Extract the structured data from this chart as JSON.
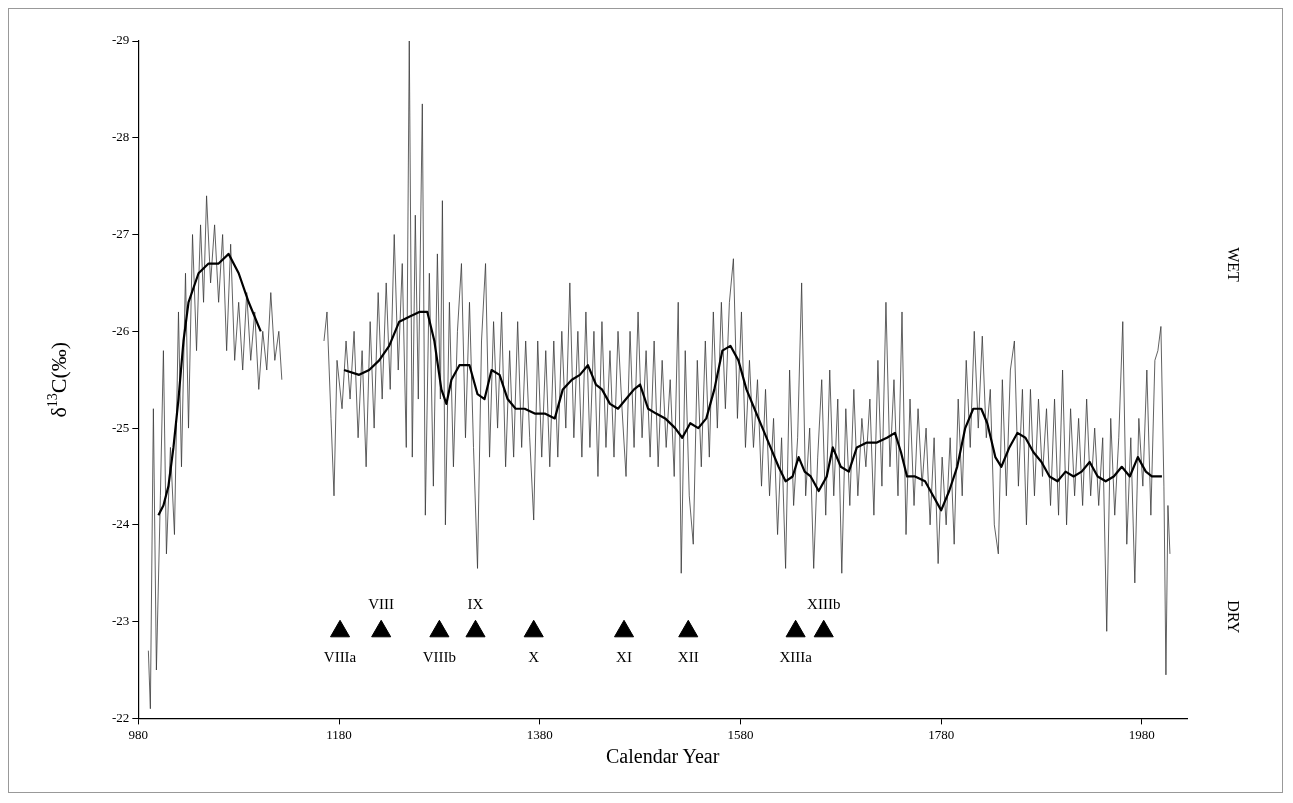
{
  "chart_data": {
    "type": "line",
    "xlabel": "Calendar Year",
    "ylabel": "δ$^{13}$C(‰)",
    "xlim": [
      980,
      2025
    ],
    "xticks": [
      980,
      1180,
      1380,
      1580,
      1780,
      1980
    ],
    "ylim": [
      -22,
      -29
    ],
    "yticks": [
      -22,
      -23,
      -24,
      -25,
      -26,
      -27,
      -28,
      -29
    ],
    "grid": false,
    "legend": false,
    "series": [
      {
        "color": "#3a3a3a",
        "x": [
          990,
          992,
          995,
          998,
          1002,
          1005,
          1008,
          1012,
          1016,
          1020,
          1023,
          1027,
          1030,
          1034,
          1038,
          1042,
          1045,
          1048,
          1052,
          1056,
          1060,
          1064,
          1068,
          1072,
          1076,
          1080,
          1084,
          1088,
          1092,
          1096,
          1100,
          1104,
          1108,
          1112,
          1116,
          1120,
          1123,
          1145,
          1165,
          1168,
          1172,
          1175,
          1178,
          1183,
          1187,
          1191,
          1195,
          1199,
          1203,
          1207,
          1211,
          1215,
          1219,
          1223,
          1227,
          1231,
          1235,
          1239,
          1243,
          1247,
          1250,
          1253,
          1256,
          1259,
          1263,
          1266,
          1270,
          1274,
          1278,
          1281,
          1283,
          1286,
          1290,
          1294,
          1298,
          1302,
          1306,
          1310,
          1314,
          1318,
          1322,
          1326,
          1330,
          1334,
          1338,
          1342,
          1346,
          1350,
          1354,
          1358,
          1362,
          1366,
          1370,
          1374,
          1378,
          1382,
          1386,
          1390,
          1394,
          1398,
          1402,
          1406,
          1410,
          1414,
          1418,
          1422,
          1426,
          1430,
          1434,
          1438,
          1442,
          1446,
          1450,
          1454,
          1458,
          1462,
          1466,
          1470,
          1474,
          1478,
          1482,
          1486,
          1490,
          1494,
          1498,
          1502,
          1506,
          1510,
          1514,
          1518,
          1521,
          1525,
          1529,
          1533,
          1537,
          1541,
          1545,
          1549,
          1553,
          1557,
          1561,
          1565,
          1569,
          1573,
          1577,
          1581,
          1585,
          1589,
          1593,
          1597,
          1601,
          1605,
          1609,
          1613,
          1617,
          1621,
          1625,
          1629,
          1633,
          1637,
          1641,
          1645,
          1649,
          1653,
          1657,
          1661,
          1665,
          1669,
          1673,
          1677,
          1681,
          1685,
          1689,
          1693,
          1697,
          1701,
          1705,
          1709,
          1713,
          1717,
          1721,
          1725,
          1729,
          1733,
          1737,
          1741,
          1745,
          1749,
          1753,
          1757,
          1761,
          1765,
          1769,
          1773,
          1777,
          1781,
          1785,
          1789,
          1793,
          1797,
          1801,
          1805,
          1809,
          1813,
          1817,
          1821,
          1825,
          1829,
          1833,
          1837,
          1841,
          1845,
          1849,
          1853,
          1857,
          1861,
          1865,
          1869,
          1873,
          1877,
          1881,
          1885,
          1889,
          1893,
          1897,
          1901,
          1905,
          1909,
          1913,
          1917,
          1921,
          1925,
          1929,
          1933,
          1937,
          1941,
          1945,
          1949,
          1953,
          1957,
          1961,
          1965,
          1969,
          1973,
          1977,
          1981,
          1985,
          1989,
          1993,
          1996,
          1999,
          2002,
          2004,
          2006,
          2008
        ],
        "values": [
          -22.7,
          -22.1,
          -25.2,
          -22.5,
          -24.3,
          -25.8,
          -23.7,
          -24.8,
          -23.9,
          -26.2,
          -24.6,
          -26.6,
          -25.0,
          -27.0,
          -25.8,
          -27.1,
          -26.3,
          -27.4,
          -26.5,
          -27.1,
          -26.3,
          -27.0,
          -25.8,
          -26.9,
          -25.7,
          -26.3,
          -25.6,
          -26.4,
          -25.7,
          -26.2,
          -25.4,
          -26.0,
          -25.6,
          -26.4,
          -25.7,
          -26.0,
          -25.5,
          null,
          -25.9,
          -26.2,
          -25.1,
          -24.3,
          -25.7,
          -25.2,
          -25.9,
          -25.3,
          -26.0,
          -24.9,
          -25.8,
          -24.6,
          -26.1,
          -25.0,
          -26.4,
          -25.3,
          -26.5,
          -25.4,
          -27.0,
          -25.6,
          -26.7,
          -24.8,
          -29.0,
          -24.7,
          -27.2,
          -25.3,
          -28.35,
          -24.1,
          -26.6,
          -24.4,
          -26.8,
          -25.3,
          -27.35,
          -24.0,
          -26.3,
          -24.6,
          -26.0,
          -26.7,
          -24.9,
          -26.3,
          -24.8,
          -23.55,
          -25.9,
          -26.7,
          -24.7,
          -26.1,
          -25.0,
          -26.2,
          -24.6,
          -25.8,
          -24.7,
          -26.1,
          -24.8,
          -25.9,
          -24.9,
          -24.05,
          -25.9,
          -24.7,
          -25.8,
          -24.6,
          -25.9,
          -24.7,
          -26.0,
          -25.0,
          -26.5,
          -24.9,
          -26.0,
          -24.7,
          -26.2,
          -24.8,
          -26.0,
          -24.5,
          -26.1,
          -24.8,
          -25.8,
          -24.7,
          -26.0,
          -25.2,
          -24.5,
          -26.0,
          -24.8,
          -26.2,
          -24.9,
          -25.8,
          -24.7,
          -25.9,
          -24.6,
          -25.7,
          -24.8,
          -25.5,
          -24.5,
          -26.3,
          -23.5,
          -25.8,
          -24.3,
          -23.8,
          -25.7,
          -24.6,
          -25.9,
          -24.7,
          -26.2,
          -25.0,
          -26.3,
          -25.2,
          -26.3,
          -26.75,
          -25.1,
          -26.2,
          -24.8,
          -25.7,
          -24.8,
          -25.5,
          -24.4,
          -25.4,
          -24.3,
          -25.1,
          -23.9,
          -24.9,
          -23.55,
          -25.6,
          -24.2,
          -24.9,
          -26.5,
          -24.3,
          -25.0,
          -23.55,
          -24.7,
          -25.5,
          -24.1,
          -25.6,
          -24.3,
          -25.3,
          -23.5,
          -25.2,
          -24.2,
          -25.4,
          -24.3,
          -25.1,
          -24.6,
          -25.3,
          -24.1,
          -25.7,
          -24.4,
          -26.3,
          -24.6,
          -25.5,
          -24.3,
          -26.2,
          -23.9,
          -25.3,
          -24.2,
          -25.2,
          -24.4,
          -25.0,
          -24.0,
          -24.9,
          -23.6,
          -24.7,
          -24.0,
          -24.9,
          -23.8,
          -25.3,
          -24.3,
          -25.7,
          -24.8,
          -26.0,
          -25.0,
          -25.95,
          -24.9,
          -25.4,
          -24.0,
          -23.7,
          -25.5,
          -24.3,
          -25.6,
          -25.9,
          -24.4,
          -25.4,
          -24.0,
          -25.4,
          -24.3,
          -25.3,
          -24.5,
          -25.2,
          -24.2,
          -25.3,
          -24.1,
          -25.6,
          -24.0,
          -25.2,
          -24.3,
          -25.1,
          -24.2,
          -25.3,
          -24.3,
          -25.0,
          -24.2,
          -24.9,
          -22.9,
          -25.1,
          -24.1,
          -24.9,
          -26.1,
          -23.8,
          -24.9,
          -23.4,
          -25.1,
          -24.4,
          -25.6,
          -24.1,
          -25.7,
          -25.8,
          -26.05,
          -24.4,
          -22.45,
          -24.2,
          -23.7
        ]
      },
      {
        "color": "#000000",
        "x": [
          1000,
          1005,
          1010,
          1015,
          1020,
          1025,
          1030,
          1040,
          1050,
          1060,
          1070,
          1080,
          1090,
          1102,
          1120,
          1185,
          1200,
          1210,
          1220,
          1230,
          1240,
          1250,
          1260,
          1268,
          1275,
          1282,
          1287,
          1292,
          1300,
          1310,
          1318,
          1325,
          1332,
          1340,
          1348,
          1356,
          1365,
          1375,
          1385,
          1395,
          1403,
          1412,
          1420,
          1428,
          1436,
          1442,
          1450,
          1458,
          1466,
          1474,
          1480,
          1488,
          1496,
          1505,
          1515,
          1522,
          1530,
          1538,
          1546,
          1554,
          1562,
          1570,
          1578,
          1586,
          1594,
          1602,
          1610,
          1618,
          1625,
          1632,
          1638,
          1644,
          1650,
          1658,
          1666,
          1672,
          1680,
          1688,
          1696,
          1706,
          1716,
          1726,
          1734,
          1740,
          1746,
          1754,
          1764,
          1772,
          1780,
          1788,
          1796,
          1804,
          1812,
          1820,
          1826,
          1834,
          1840,
          1848,
          1856,
          1864,
          1872,
          1880,
          1888,
          1896,
          1904,
          1912,
          1920,
          1928,
          1936,
          1944,
          1952,
          1960,
          1968,
          1976,
          1984,
          1990,
          2000
        ],
        "values": [
          -24.1,
          -24.2,
          -24.4,
          -24.8,
          -25.3,
          -25.9,
          -26.3,
          -26.6,
          -26.7,
          -26.7,
          -26.8,
          -26.6,
          -26.3,
          -26.0,
          null,
          -25.6,
          -25.55,
          -25.6,
          -25.7,
          -25.85,
          -26.1,
          -26.15,
          -26.2,
          -26.2,
          -25.9,
          -25.4,
          -25.25,
          -25.5,
          -25.65,
          -25.65,
          -25.35,
          -25.3,
          -25.6,
          -25.55,
          -25.3,
          -25.2,
          -25.2,
          -25.15,
          -25.15,
          -25.1,
          -25.4,
          -25.5,
          -25.55,
          -25.65,
          -25.45,
          -25.4,
          -25.25,
          -25.2,
          -25.3,
          -25.4,
          -25.45,
          -25.2,
          -25.15,
          -25.1,
          -25.0,
          -24.9,
          -25.05,
          -25.0,
          -25.1,
          -25.4,
          -25.8,
          -25.85,
          -25.7,
          -25.4,
          -25.2,
          -25.0,
          -24.8,
          -24.6,
          -24.45,
          -24.5,
          -24.7,
          -24.55,
          -24.5,
          -24.35,
          -24.5,
          -24.8,
          -24.6,
          -24.55,
          -24.8,
          -24.85,
          -24.85,
          -24.9,
          -24.95,
          -24.75,
          -24.5,
          -24.5,
          -24.45,
          -24.3,
          -24.15,
          -24.35,
          -24.6,
          -25.0,
          -25.2,
          -25.2,
          -25.05,
          -24.7,
          -24.6,
          -24.8,
          -24.95,
          -24.9,
          -24.75,
          -24.65,
          -24.5,
          -24.45,
          -24.55,
          -24.5,
          -24.55,
          -24.65,
          -24.5,
          -24.45,
          -24.5,
          -24.6,
          -24.5,
          -24.7,
          -24.55,
          -24.5,
          -24.5
        ]
      },
      {
        "type": "scatter",
        "marker": "triangle",
        "color": "#000000",
        "x": [
          1181,
          1222,
          1280,
          1316,
          1374,
          1464,
          1528,
          1635,
          1663
        ],
        "values": [
          -22.9,
          -22.9,
          -22.9,
          -22.9,
          -22.9,
          -22.9,
          -22.9,
          -22.9,
          -22.9
        ]
      }
    ],
    "annotations": [
      {
        "text": "VIIIa",
        "x": 1181,
        "y": -22.9
      },
      {
        "text": "VIII",
        "x": 1222,
        "y": -22.9
      },
      {
        "text": "VIIIb",
        "x": 1280,
        "y": -22.9
      },
      {
        "text": "IX",
        "x": 1316,
        "y": -22.9
      },
      {
        "text": "X",
        "x": 1374,
        "y": -22.9
      },
      {
        "text": "XI",
        "x": 1464,
        "y": -22.9
      },
      {
        "text": "XII",
        "x": 1528,
        "y": -22.9
      },
      {
        "text": "XIIIa",
        "x": 1635,
        "y": -22.9
      },
      {
        "text": "XIIIb",
        "x": 1663,
        "y": -22.9
      },
      "WET",
      "DRY"
    ]
  }
}
